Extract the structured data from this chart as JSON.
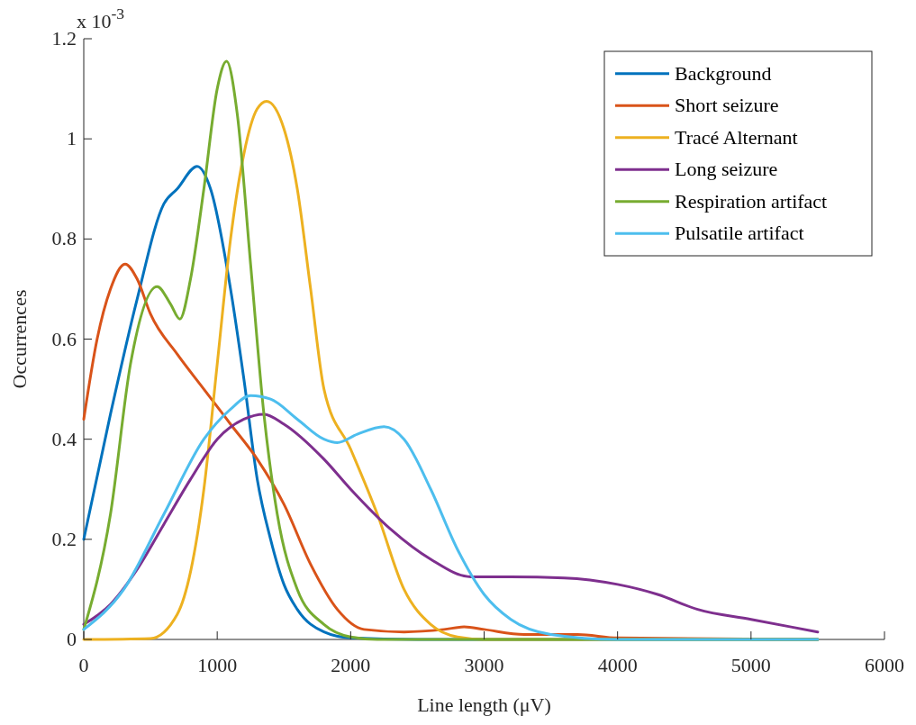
{
  "chart_data": {
    "type": "line",
    "xlabel": "Line length (μV)",
    "ylabel": "Occurrences",
    "annotations": [
      "x 10$^{-3}$"
    ],
    "xlim": [
      0,
      6000
    ],
    "xticks": [
      0,
      1000,
      2000,
      3000,
      4000,
      5000,
      6000
    ],
    "ylim": [
      0,
      1.2
    ],
    "yticks": [
      0,
      0.2,
      0.4,
      0.6,
      0.8,
      1,
      1.2
    ],
    "legend": "top right",
    "grid": false,
    "line_style": "solid",
    "marker": "none",
    "series": [
      {
        "name": "Background",
        "color": "#0072bd",
        "x": [
          0,
          200,
          400,
          600,
          700,
          850,
          950,
          1100,
          1200,
          1300,
          1400,
          1500,
          1600,
          1800,
          2000,
          2500,
          5500
        ],
        "values": [
          0.2,
          0.45,
          0.68,
          0.87,
          0.9,
          0.945,
          0.9,
          0.7,
          0.52,
          0.32,
          0.2,
          0.11,
          0.06,
          0.015,
          0.003,
          0,
          0
        ]
      },
      {
        "name": "Short seizure",
        "color": "#d95319",
        "x": [
          0,
          100,
          200,
          310,
          400,
          500,
          700,
          900,
          1100,
          1300,
          1500,
          1700,
          1900,
          2100,
          2400,
          2700,
          2850,
          3000,
          3300,
          3700,
          4000,
          5500
        ],
        "values": [
          0.44,
          0.6,
          0.7,
          0.75,
          0.72,
          0.65,
          0.57,
          0.5,
          0.43,
          0.36,
          0.27,
          0.15,
          0.06,
          0.02,
          0.015,
          0.02,
          0.025,
          0.02,
          0.01,
          0.01,
          0.003,
          0
        ]
      },
      {
        "name": "Tracé Alternant",
        "color": "#edb120",
        "x": [
          0,
          500,
          700,
          900,
          1000,
          1100,
          1200,
          1300,
          1370,
          1500,
          1600,
          1700,
          1800,
          2000,
          2200,
          2400,
          2600,
          2800,
          3000,
          5500
        ],
        "values": [
          0,
          0.002,
          0.05,
          0.3,
          0.55,
          0.8,
          0.97,
          1.06,
          1.075,
          1.02,
          0.9,
          0.7,
          0.5,
          0.38,
          0.25,
          0.1,
          0.03,
          0.005,
          0,
          0
        ]
      },
      {
        "name": "Long seizure",
        "color": "#7e2f8e",
        "x": [
          0,
          200,
          400,
          600,
          800,
          1000,
          1200,
          1350,
          1500,
          1800,
          2000,
          2300,
          2600,
          2900,
          3200,
          3600,
          4000,
          4300,
          4600,
          5000,
          5300,
          5500
        ],
        "values": [
          0.03,
          0.07,
          0.14,
          0.23,
          0.32,
          0.4,
          0.44,
          0.45,
          0.43,
          0.36,
          0.3,
          0.22,
          0.16,
          0.125,
          0.125,
          0.123,
          0.11,
          0.09,
          0.06,
          0.04,
          0.025,
          0.015
        ]
      },
      {
        "name": "Respiration artifact",
        "color": "#77ac30",
        "x": [
          0,
          200,
          350,
          550,
          650,
          720,
          800,
          900,
          1000,
          1070,
          1150,
          1250,
          1350,
          1450,
          1600,
          1800,
          2000,
          2200,
          5500
        ],
        "values": [
          0.02,
          0.25,
          0.55,
          0.705,
          0.67,
          0.64,
          0.72,
          0.9,
          1.1,
          1.155,
          1.05,
          0.75,
          0.45,
          0.25,
          0.1,
          0.03,
          0.005,
          0,
          0
        ]
      },
      {
        "name": "Pulsatile artifact",
        "color": "#4dbeee",
        "x": [
          0,
          300,
          600,
          900,
          1100,
          1250,
          1400,
          1600,
          1800,
          1900,
          2050,
          2250,
          2400,
          2600,
          2800,
          3000,
          3200,
          3500,
          4000,
          5500
        ],
        "values": [
          0.02,
          0.1,
          0.25,
          0.4,
          0.46,
          0.487,
          0.48,
          0.44,
          0.4,
          0.393,
          0.41,
          0.425,
          0.4,
          0.3,
          0.18,
          0.09,
          0.04,
          0.01,
          0,
          0
        ]
      }
    ]
  }
}
